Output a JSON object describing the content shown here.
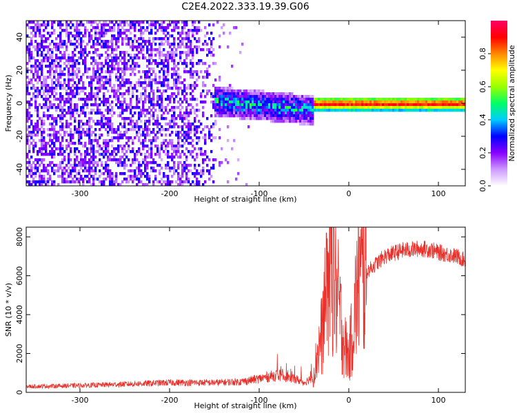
{
  "title": "C2E4.2022.333.19.39.G06",
  "chart_data": [
    {
      "type": "heatmap",
      "xlabel": "Height of straight line (km)",
      "ylabel": "Frequency (Hz)",
      "xlim": [
        -360,
        130
      ],
      "ylim": [
        -50,
        50
      ],
      "x_ticks": [
        -300,
        -200,
        -100,
        0,
        100
      ],
      "x_tick_labels": [
        "-300",
        "-200",
        "-100",
        "0",
        "100"
      ],
      "y_ticks": [
        -40,
        -20,
        0,
        20,
        40
      ],
      "y_tick_labels": [
        "-40",
        "-20",
        "0",
        "20",
        "40"
      ],
      "colorbar": {
        "label": "Normalized spectral amplitude",
        "range": [
          0,
          1
        ],
        "ticks": [
          0.0,
          0.2,
          0.4,
          0.6,
          0.8
        ],
        "tick_labels": [
          "0.0",
          "0.2",
          "0.4",
          "0.6",
          "0.8"
        ],
        "colors": [
          "#ffffff",
          "#cc99ff",
          "#8800ff",
          "#0000ff",
          "#00ccff",
          "#00ff66",
          "#99ff00",
          "#ffff00",
          "#ff8800",
          "#ff0000",
          "#ff0066"
        ]
      },
      "features": [
        {
          "x_range": [
            -360,
            -150
          ],
          "freq_range": [
            -50,
            50
          ],
          "level": "diffuse noise"
        },
        {
          "x_range": [
            -150,
            -40
          ],
          "freq_center": 0,
          "freq_halfwidth": 10,
          "level": "0.3-0.6"
        },
        {
          "x_range": [
            -40,
            130
          ],
          "freq_center": 0,
          "freq_halfwidth": 3,
          "level": "0.8-1.0"
        }
      ]
    },
    {
      "type": "line",
      "xlabel": "Height of straight line (km)",
      "ylabel": "SNR (10 * v/v)",
      "xlim": [
        -360,
        130
      ],
      "ylim": [
        0,
        8500
      ],
      "x_ticks": [
        -300,
        -200,
        -100,
        0,
        100
      ],
      "x_tick_labels": [
        "-300",
        "-200",
        "-100",
        "0",
        "100"
      ],
      "y_ticks": [
        0,
        2000,
        4000,
        6000,
        8000
      ],
      "y_tick_labels": [
        "0",
        "2000",
        "4000",
        "6000",
        "8000"
      ],
      "color": "#e8302a",
      "series": [
        {
          "x": [
            -360,
            -300,
            -250,
            -200,
            -150,
            -120,
            -100,
            -80,
            -60,
            -50,
            -40,
            -35,
            -30,
            -25,
            -20,
            -15,
            -10,
            -5,
            0,
            5,
            10,
            20,
            30,
            40,
            60,
            80,
            90,
            100,
            110,
            120,
            130
          ],
          "values": [
            300,
            350,
            420,
            500,
            500,
            550,
            700,
            900,
            700,
            500,
            800,
            2000,
            3000,
            5000,
            7000,
            5500,
            4000,
            2500,
            1800,
            3500,
            5500,
            6200,
            6600,
            7000,
            7300,
            7400,
            7350,
            7200,
            7100,
            7000,
            6800
          ],
          "peaks": [
            {
              "x": -17,
              "value": 8500
            },
            {
              "x": -25,
              "value": 8200
            },
            {
              "x": 12,
              "value": 8000
            }
          ]
        }
      ]
    }
  ]
}
